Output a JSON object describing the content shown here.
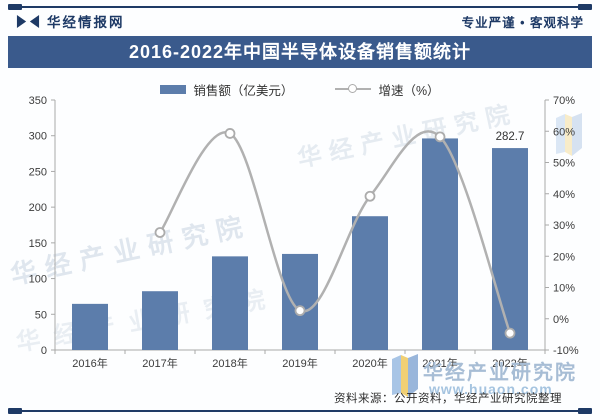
{
  "header": {
    "brand": "华经情报网",
    "slogan": "专业严谨 • 客观科学"
  },
  "title": "2016-2022年中国半导体设备销售额统计",
  "legend": [
    {
      "label": "销售额（亿美元）",
      "type": "bar"
    },
    {
      "label": "增速（%）",
      "type": "line"
    }
  ],
  "chart_data": {
    "type": "combo-bar-line",
    "title": "2016-2022年中国半导体设备销售额统计",
    "categories": [
      "2016年",
      "2017年",
      "2018年",
      "2019年",
      "2020年",
      "2021年",
      "2022年"
    ],
    "series": [
      {
        "name": "销售额（亿美元）",
        "type": "bar",
        "axis": "left",
        "color": "#5C7DAB",
        "values": [
          64.6,
          82.3,
          131.1,
          134.5,
          187.3,
          296.2,
          282.7
        ]
      },
      {
        "name": "增速（%）",
        "type": "line",
        "axis": "right",
        "color": "#B1B1B1",
        "marker": "open-circle",
        "values": [
          null,
          27.6,
          59.3,
          2.6,
          39.2,
          58.2,
          -4.6
        ]
      }
    ],
    "left_axis": {
      "min": 0,
      "max": 350,
      "step": 50,
      "ticks": [
        0,
        50,
        100,
        150,
        200,
        250,
        300,
        350
      ]
    },
    "right_axis": {
      "min": -10,
      "max": 70,
      "step": 10,
      "unit": "%",
      "ticks": [
        -10,
        0,
        10,
        20,
        30,
        40,
        50,
        60,
        70
      ]
    },
    "data_labels": [
      {
        "category": "2022年",
        "text": "282.7"
      }
    ],
    "grid": false,
    "legend_position": "top"
  },
  "watermark": {
    "name": "华经产业研究院",
    "url": "www.huaon.com"
  },
  "footer": {
    "source": "资料来源：公开资料，华经产业研究院整理"
  },
  "theme": {
    "navy": "#1E3A66",
    "title_bar_bg": "#3A5A8C",
    "bar_color": "#5C7DAB",
    "line_color": "#B1B1B1",
    "axis_color": "#A9A9A9",
    "text_color": "#3C3C3C",
    "watermark_color": "#A7BDD5"
  }
}
